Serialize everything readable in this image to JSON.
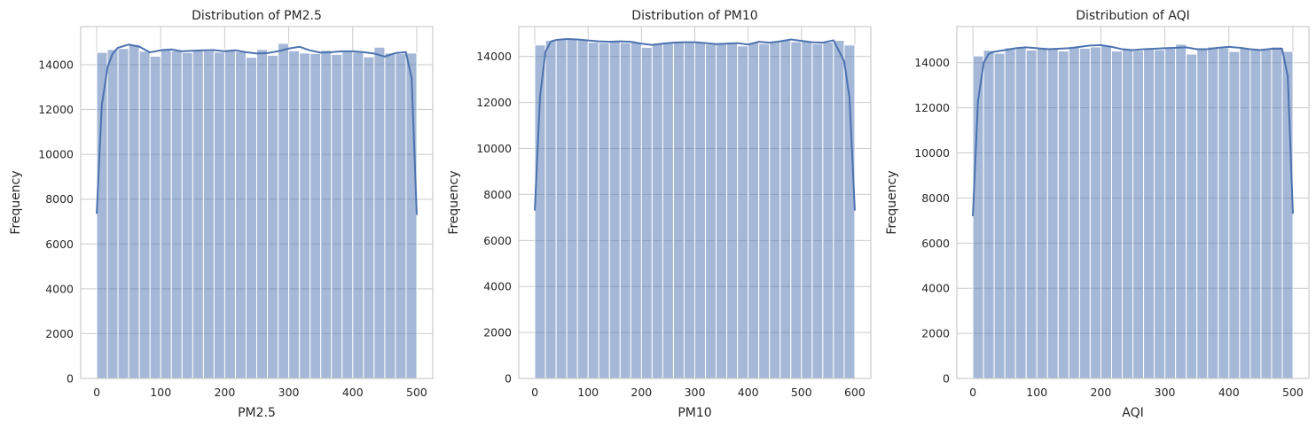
{
  "chart_data": [
    {
      "type": "histogram",
      "title": "Distribution of PM2.5",
      "xlabel": "PM2.5",
      "ylabel": "Frequency",
      "xlim": [
        -25,
        525
      ],
      "ylim": [
        0,
        15700
      ],
      "xticks": [
        0,
        100,
        200,
        300,
        400,
        500
      ],
      "yticks": [
        0,
        2000,
        4000,
        6000,
        8000,
        10000,
        12000,
        14000
      ],
      "grid": true,
      "bins": {
        "start": 0,
        "width": 16.67,
        "counts": [
          14550,
          14680,
          14720,
          14900,
          14600,
          14380,
          14720,
          14620,
          14540,
          14640,
          14620,
          14560,
          14680,
          14580,
          14330,
          14680,
          14420,
          14950,
          14620,
          14520,
          14500,
          14640,
          14460,
          14580,
          14560,
          14350,
          14780,
          14520,
          14490,
          14520
        ]
      },
      "kde": {
        "x": [
          0,
          8,
          17,
          25,
          33,
          50,
          67,
          83,
          100,
          117,
          133,
          150,
          167,
          183,
          200,
          217,
          233,
          250,
          267,
          283,
          300,
          317,
          333,
          350,
          367,
          383,
          400,
          417,
          433,
          450,
          467,
          483,
          492,
          500
        ],
        "y": [
          7350,
          12200,
          13900,
          14500,
          14750,
          14900,
          14800,
          14550,
          14640,
          14680,
          14600,
          14620,
          14640,
          14650,
          14600,
          14640,
          14560,
          14500,
          14520,
          14600,
          14720,
          14800,
          14640,
          14540,
          14560,
          14600,
          14600,
          14560,
          14500,
          14360,
          14520,
          14560,
          13400,
          7300
        ]
      }
    },
    {
      "type": "histogram",
      "title": "Distribution of PM10",
      "xlabel": "PM10",
      "ylabel": "Frequency",
      "xlim": [
        -30,
        630
      ],
      "ylim": [
        0,
        15300
      ],
      "xticks": [
        0,
        100,
        200,
        300,
        400,
        500,
        600
      ],
      "yticks": [
        0,
        2000,
        4000,
        6000,
        8000,
        10000,
        12000,
        14000
      ],
      "grid": true,
      "bins": {
        "start": 0,
        "width": 20,
        "counts": [
          14500,
          14700,
          14750,
          14780,
          14720,
          14620,
          14600,
          14650,
          14600,
          14620,
          14400,
          14580,
          14630,
          14660,
          14600,
          14640,
          14540,
          14580,
          14620,
          14460,
          14600,
          14560,
          14640,
          14700,
          14640,
          14680,
          14560,
          14620,
          14700,
          14500
        ]
      },
      "kde": {
        "x": [
          0,
          10,
          20,
          30,
          40,
          60,
          80,
          100,
          120,
          140,
          160,
          180,
          200,
          220,
          240,
          260,
          280,
          300,
          320,
          340,
          360,
          380,
          400,
          420,
          440,
          460,
          480,
          500,
          520,
          540,
          560,
          580,
          590,
          600
        ],
        "y": [
          7300,
          12300,
          14200,
          14650,
          14720,
          14760,
          14740,
          14700,
          14660,
          14640,
          14660,
          14640,
          14560,
          14500,
          14560,
          14600,
          14620,
          14620,
          14580,
          14540,
          14560,
          14580,
          14520,
          14640,
          14600,
          14660,
          14740,
          14680,
          14620,
          14600,
          14700,
          13800,
          12200,
          7300
        ]
      }
    },
    {
      "type": "histogram",
      "title": "Distribution of AQI",
      "xlabel": "AQI",
      "ylabel": "Frequency",
      "xlim": [
        -25,
        525
      ],
      "ylim": [
        0,
        15600
      ],
      "xticks": [
        0,
        100,
        200,
        300,
        400,
        500
      ],
      "yticks": [
        0,
        2000,
        4000,
        6000,
        8000,
        10000,
        12000,
        14000
      ],
      "grid": true,
      "bins": {
        "start": 0,
        "width": 16.67,
        "counts": [
          14300,
          14550,
          14420,
          14660,
          14700,
          14560,
          14680,
          14620,
          14520,
          14720,
          14640,
          14700,
          14760,
          14520,
          14600,
          14540,
          14640,
          14580,
          14660,
          14820,
          14380,
          14640,
          14700,
          14660,
          14500,
          14640,
          14600,
          14640,
          14700,
          14500
        ]
      },
      "kde": {
        "x": [
          0,
          8,
          17,
          25,
          33,
          50,
          67,
          83,
          100,
          117,
          133,
          150,
          167,
          183,
          200,
          217,
          233,
          250,
          267,
          283,
          300,
          317,
          333,
          350,
          367,
          383,
          400,
          417,
          433,
          450,
          467,
          483,
          492,
          500
        ],
        "y": [
          7200,
          12300,
          14000,
          14400,
          14480,
          14560,
          14640,
          14680,
          14640,
          14600,
          14620,
          14640,
          14700,
          14760,
          14780,
          14700,
          14600,
          14560,
          14600,
          14620,
          14640,
          14660,
          14680,
          14600,
          14600,
          14660,
          14700,
          14660,
          14600,
          14560,
          14620,
          14620,
          13400,
          7300
        ]
      }
    }
  ]
}
